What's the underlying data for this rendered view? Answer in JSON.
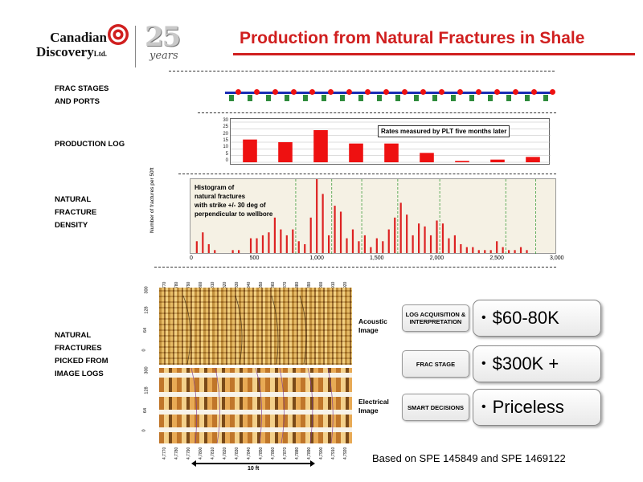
{
  "header": {
    "company_line1": "Canadian",
    "company_line2": "Discovery",
    "company_suffix": "Ltd.",
    "anniversary_number": "25",
    "anniversary_word": "years",
    "title": "Production from Natural Fractures in Shale",
    "accent_color": "#d01f1f"
  },
  "labels": {
    "frac": "FRAC STAGES\n AND PORTS",
    "production": "PRODUCTION LOG",
    "density": "NATURAL\nFRACTURE\nDENSITY",
    "picked": "NATURAL\nFRACTURES\nPICKED FROM\nIMAGE LOGS"
  },
  "production_chart": {
    "callout": "Rates measured by PLT five months later",
    "yticks": [
      "30",
      "25",
      "20",
      "15",
      "10",
      "5",
      "0"
    ],
    "ylim": [
      0,
      30
    ],
    "values": [
      17,
      15,
      24,
      14,
      14,
      7,
      1,
      2,
      4
    ]
  },
  "histogram": {
    "text_line1": "Histogram of",
    "text_line2": "natural fractures",
    "text_line3": "with strike +/- 30 deg of",
    "text_line4": "perpendicular to wellbore",
    "ylabel": "Number of fractures per 50ft",
    "xticks": [
      "0",
      "500",
      "1,000",
      "1,500",
      "2,000",
      "2,500",
      "3,000"
    ],
    "xlim": [
      0,
      3000
    ],
    "ylim": [
      0,
      25
    ],
    "bins_x": [
      25,
      75,
      125,
      175,
      325,
      375,
      475,
      525,
      575,
      625,
      675,
      725,
      775,
      825,
      875,
      925,
      975,
      1025,
      1075,
      1125,
      1175,
      1225,
      1275,
      1325,
      1375,
      1425,
      1475,
      1525,
      1575,
      1625,
      1675,
      1725,
      1775,
      1825,
      1875,
      1925,
      1975,
      2025,
      2075,
      2125,
      2175,
      2225,
      2275,
      2325,
      2375,
      2425,
      2475,
      2525,
      2575,
      2625,
      2675,
      2725,
      2775
    ],
    "bins_y": [
      4,
      7,
      3,
      1,
      1,
      1,
      5,
      5,
      6,
      7,
      12,
      8,
      6,
      8,
      4,
      3,
      12,
      25,
      20,
      6,
      16,
      14,
      5,
      8,
      4,
      6,
      2,
      5,
      4,
      8,
      12,
      17,
      13,
      6,
      10,
      9,
      6,
      11,
      10,
      5,
      6,
      3,
      2,
      2,
      1,
      1,
      1,
      4,
      2,
      1,
      1,
      2,
      1
    ]
  },
  "image_logs": {
    "acoustic_label": "Acoustic\nImage",
    "electrical_label": "Electrical\nImage",
    "scale_label": "10 ft",
    "top_ticks": [
      "4,7770",
      "4,7780",
      "4,7790",
      "4,7800",
      "4,7810",
      "4,7820",
      "4,7830",
      "4,7840",
      "4,7850",
      "4,7860",
      "4,7870",
      "4,7880",
      "4,7890",
      "4,7900",
      "4,7910",
      "4,7920"
    ],
    "bottom_ticks": [
      "4,7770",
      "4,7780",
      "4,7790",
      "4,7800",
      "4,7810",
      "4,7820",
      "4,7830",
      "4,7840",
      "4,7850",
      "4,7860",
      "4,7870",
      "4,7880",
      "4,7890",
      "4,7900",
      "4,7910",
      "4,7920"
    ],
    "depth_labels": [
      "300",
      "128",
      "64",
      "0",
      "300",
      "128",
      "64",
      "0"
    ]
  },
  "costs": [
    {
      "label": "LOG ACQUISITION & INTERPRETATION",
      "value": "$60-80K"
    },
    {
      "label": "FRAC STAGE",
      "value": "$300K +"
    },
    {
      "label": "SMART DECISIONS",
      "value": "Priceless"
    }
  ],
  "reference": "Based on SPE  145849 and SPE 1469122"
}
